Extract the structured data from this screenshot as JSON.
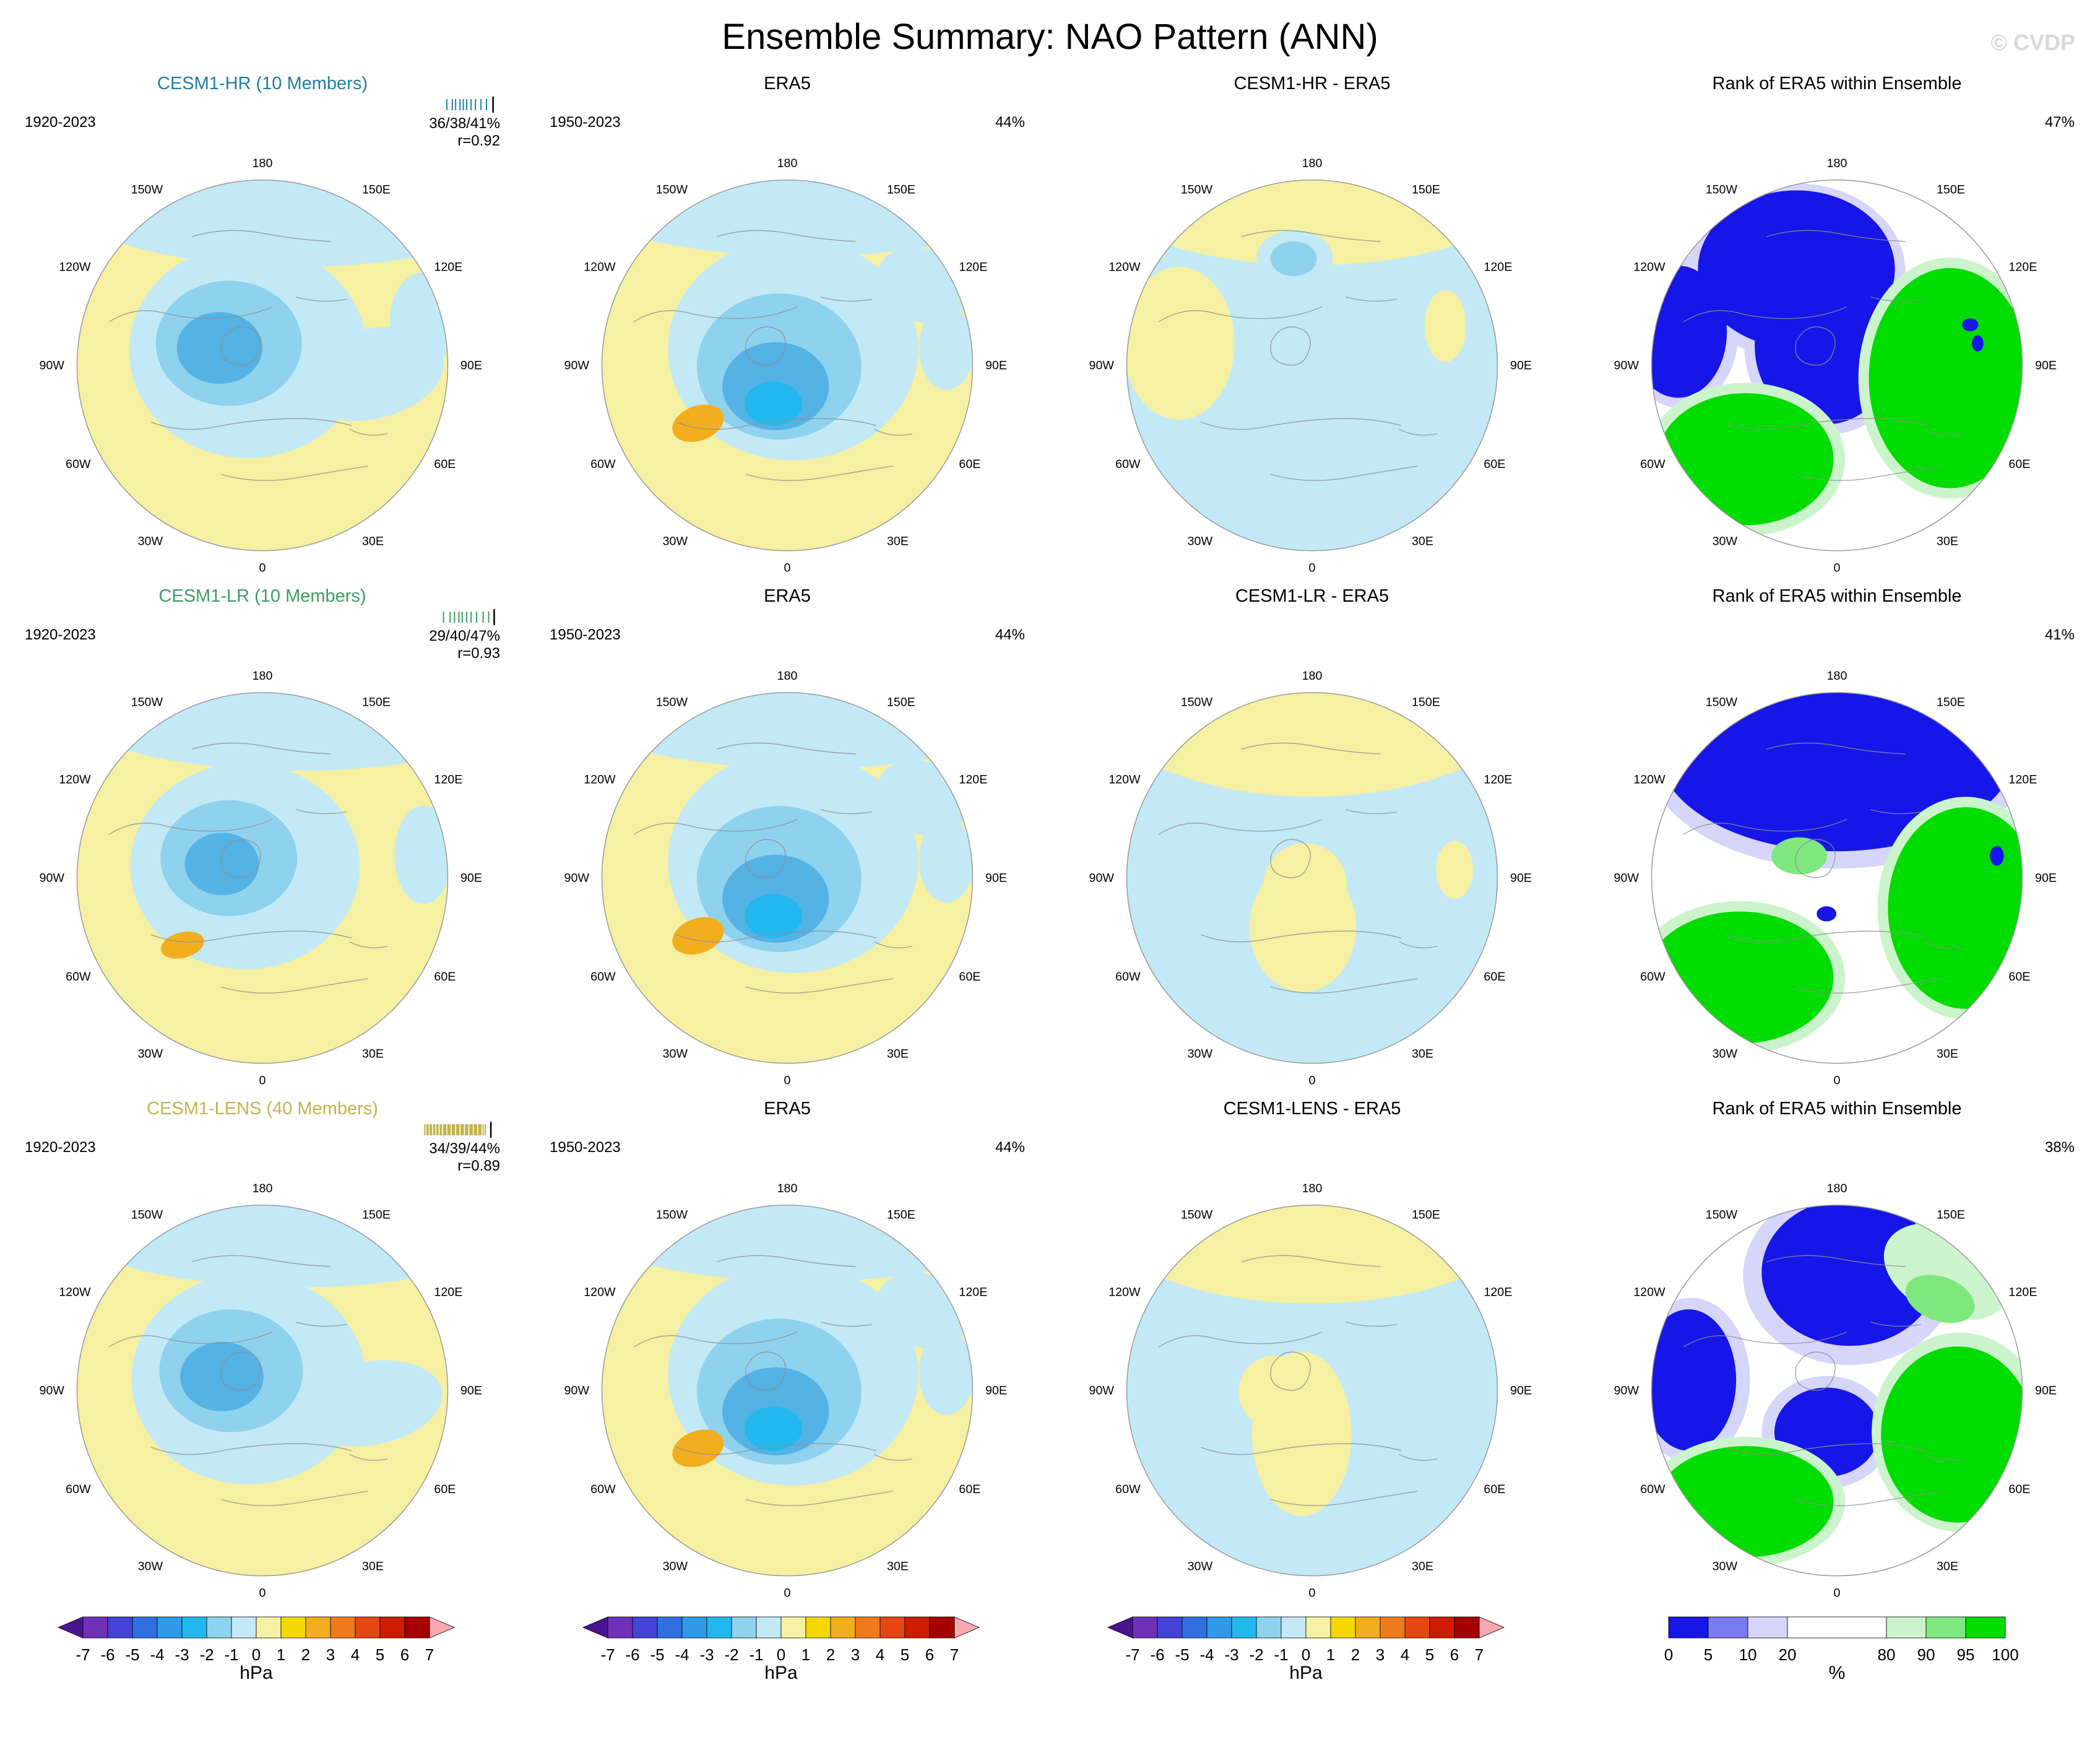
{
  "header": {
    "title": "Ensemble Summary: NAO Pattern (ANN)",
    "watermark": "© CVDP"
  },
  "colors": {
    "yellow": "#f6f0a2",
    "lightblue": "#c3e9f7",
    "midblue": "#8fd2ee",
    "deepblue": "#55b2e4",
    "cyan": "#22b8ee",
    "orange": "#f2ae1e",
    "rankblue": "#1616e8",
    "rankgreen": "#00dc00",
    "midgreen": "#7ee87e",
    "palegreen": "#ccf4cc",
    "lavender": "#d6d6fb",
    "white": "#ffffff",
    "coast": "#8f8f8f"
  },
  "map": {
    "lon_labels_clockwise_from_top": [
      "180",
      "150E",
      "120E",
      "90E",
      "60E",
      "30E",
      "0",
      "30W",
      "60W",
      "90W",
      "120W",
      "150W"
    ]
  },
  "panels": [
    {
      "style": "model-hr",
      "title": "CESM1-HR (10 Members)",
      "title_color": "#1f7ea6",
      "accent": "#1f7ea6",
      "period": "1920-2023",
      "stats": "36/38/41%",
      "corr": "r=0.92",
      "member_ticks": [
        55,
        60,
        63,
        67,
        70,
        73,
        77,
        81,
        86,
        91
      ],
      "obs_tick": 97
    },
    {
      "style": "era5",
      "title": "ERA5",
      "period": "1950-2023",
      "pct": "44%"
    },
    {
      "style": "diff-hr",
      "title": "CESM1-HR - ERA5"
    },
    {
      "style": "rank-hr",
      "title": "Rank of ERA5 within Ensemble",
      "pct": "47%"
    },
    {
      "style": "model-lr",
      "title": "CESM1-LR (10 Members)",
      "title_color": "#3c9e63",
      "accent": "#3c9e63",
      "period": "1920-2023",
      "stats": "29/40/47%",
      "corr": "r=0.93",
      "member_ticks": [
        52,
        58,
        62,
        66,
        69,
        73,
        77,
        82,
        88,
        93
      ],
      "obs_tick": 98
    },
    {
      "style": "era5",
      "title": "ERA5",
      "period": "1950-2023",
      "pct": "44%"
    },
    {
      "style": "diff-lr",
      "title": "CESM1-LR - ERA5"
    },
    {
      "style": "rank-lr",
      "title": "Rank of ERA5 within Ensemble",
      "pct": "41%"
    },
    {
      "style": "model-lens",
      "title": "CESM1-LENS (40 Members)",
      "title_color": "#c2b44c",
      "accent": "#c2b44c",
      "period": "1920-2023",
      "stats": "34/39/44%",
      "corr": "r=0.89",
      "member_ticks": [
        35,
        37,
        38,
        40,
        41,
        43,
        44,
        46,
        47,
        49,
        50,
        52,
        53,
        54,
        56,
        57,
        58,
        60,
        61,
        62,
        64,
        65,
        66,
        68,
        69,
        70,
        72,
        73,
        74,
        76,
        77,
        78,
        80,
        81,
        82,
        84,
        85,
        86,
        88,
        90
      ],
      "obs_tick": 95
    },
    {
      "style": "era5",
      "title": "ERA5",
      "period": "1950-2023",
      "pct": "44%"
    },
    {
      "style": "diff-lens",
      "title": "CESM1-LENS - ERA5"
    },
    {
      "style": "rank-lens",
      "title": "Rank of ERA5 within Ensemble",
      "pct": "38%"
    }
  ],
  "colorbars": {
    "hpa": {
      "unit": "hPa",
      "tick_labels": [
        "-7",
        "-6",
        "-5",
        "-4",
        "-3",
        "-2",
        "-1",
        "0",
        "1",
        "2",
        "3",
        "4",
        "5",
        "6",
        "7"
      ],
      "cells": [
        "#7130b8",
        "#4443d6",
        "#2f6fe0",
        "#2f9ae8",
        "#22b8ee",
        "#8fd2ee",
        "#c3e9f7",
        "#f6f0a2",
        "#f2d800",
        "#f2ae1e",
        "#ee7a1e",
        "#e44713",
        "#cf1c00",
        "#a40000"
      ],
      "arrow_left": "#4a1391",
      "arrow_right": "#f8a8b0"
    },
    "rank": {
      "unit": "%",
      "tick_labels": [
        "0",
        "5",
        "10",
        "20",
        "80",
        "90",
        "95",
        "100"
      ],
      "cells": [
        "#1616e8",
        "#7a7af2",
        "#d6d6fb",
        "#ffffff",
        "#ccf4cc",
        "#7ee87e",
        "#00dc00"
      ]
    }
  },
  "chart_data": {
    "type": "heatmap",
    "title": "Ensemble Summary: NAO Pattern (ANN)",
    "layout": "3 rows x 4 columns of north polar stereographic maps; columns: ensemble mean, ERA5, ensemble minus ERA5, rank of ERA5 within ensemble",
    "rows": [
      {
        "ensemble": "CESM1-HR",
        "members": 10,
        "period": "1920-2023",
        "stats_pct": "36/38/41%",
        "pattern_correlation": "r=0.92",
        "era5_period": "1950-2023",
        "era5_pct": "44%",
        "rank_pct": "47%"
      },
      {
        "ensemble": "CESM1-LR",
        "members": 10,
        "period": "1920-2023",
        "stats_pct": "29/40/47%",
        "pattern_correlation": "r=0.93",
        "era5_period": "1950-2023",
        "era5_pct": "44%",
        "rank_pct": "41%"
      },
      {
        "ensemble": "CESM1-LENS",
        "members": 40,
        "period": "1920-2023",
        "stats_pct": "34/39/44%",
        "pattern_correlation": "r=0.89",
        "era5_period": "1950-2023",
        "era5_pct": "44%",
        "rank_pct": "38%"
      }
    ],
    "colorbars": [
      {
        "unit": "hPa",
        "ticks": [
          -7,
          -6,
          -5,
          -4,
          -3,
          -2,
          -1,
          0,
          1,
          2,
          3,
          4,
          5,
          6,
          7
        ],
        "applies_to": "columns 1-3"
      },
      {
        "unit": "%",
        "ticks": [
          0,
          5,
          10,
          20,
          80,
          90,
          95,
          100
        ],
        "applies_to": "column 4 (rank)"
      }
    ],
    "map_longitude_labels": [
      "180",
      "150W",
      "120W",
      "90W",
      "60W",
      "30W",
      "0",
      "30E",
      "60E",
      "90E",
      "120E",
      "150E"
    ]
  }
}
